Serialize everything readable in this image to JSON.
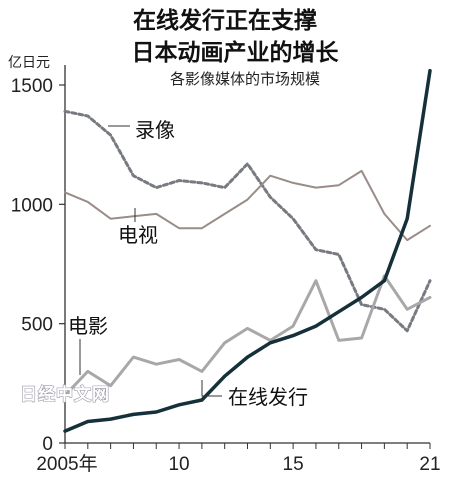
{
  "chart_data": {
    "type": "line",
    "title_line1": "在线发行正在支撑",
    "title_line2": "日本动画产业的增长",
    "subtitle": "各影像媒体的市场规模",
    "y_unit": "亿日元",
    "x": [
      2005,
      2006,
      2007,
      2008,
      2009,
      2010,
      2011,
      2012,
      2013,
      2014,
      2015,
      2016,
      2017,
      2018,
      2019,
      2020,
      2021
    ],
    "xlim": [
      2005,
      2021
    ],
    "ylim": [
      0,
      1500
    ],
    "y_ticks": [
      0,
      500,
      1000,
      1500
    ],
    "y_tick_labels": [
      "0",
      "500",
      "1000",
      "1500"
    ],
    "x_ticks": [
      2005,
      2010,
      2015,
      2021
    ],
    "x_tick_labels": [
      "2005年",
      "10",
      "15",
      "21"
    ],
    "grid": false,
    "legend": "none",
    "series": [
      {
        "name": "录像",
        "style": "dashed",
        "color": "#777a80",
        "values": [
          1390,
          1370,
          1290,
          1120,
          1070,
          1100,
          1090,
          1070,
          1170,
          1030,
          940,
          810,
          790,
          580,
          560,
          470,
          680
        ]
      },
      {
        "name": "电视",
        "style": "solid",
        "color": "#9a8c88",
        "values": [
          1050,
          1010,
          940,
          950,
          960,
          900,
          900,
          960,
          1020,
          1120,
          1090,
          1070,
          1080,
          1140,
          960,
          850,
          910
        ]
      },
      {
        "name": "电影",
        "style": "solid",
        "color": "#a8a8a8",
        "values": [
          200,
          300,
          240,
          360,
          330,
          350,
          300,
          420,
          480,
          430,
          490,
          680,
          430,
          440,
          700,
          560,
          610
        ]
      },
      {
        "name": "在线发行",
        "style": "solid",
        "color": "#16303a",
        "values": [
          50,
          90,
          100,
          120,
          130,
          160,
          180,
          280,
          360,
          420,
          450,
          490,
          550,
          610,
          680,
          940,
          1560
        ]
      }
    ]
  },
  "watermark": "日经中文网"
}
